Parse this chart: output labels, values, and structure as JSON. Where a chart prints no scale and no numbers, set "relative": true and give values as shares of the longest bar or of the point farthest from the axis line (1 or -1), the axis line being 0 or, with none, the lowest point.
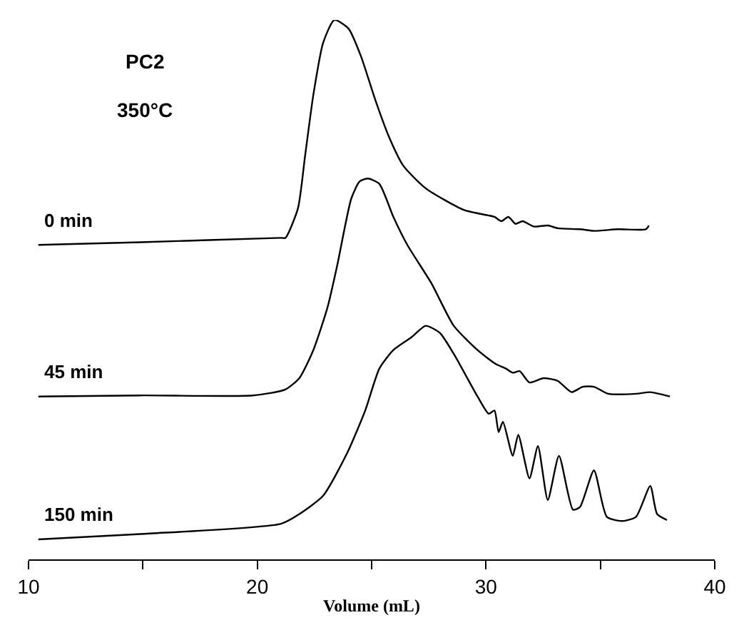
{
  "chart_data": {
    "type": "line",
    "relative": true,
    "xlabel": "Volume (mL)",
    "xlim": [
      10,
      40
    ],
    "xticks": [
      10,
      {
        "value": 15,
        "label": null
      },
      20,
      {
        "value": 25,
        "label": null
      },
      30,
      {
        "value": 35,
        "label": null
      },
      40
    ],
    "annotations": [
      "PC2",
      "350°C"
    ],
    "legend": false,
    "marker": "none",
    "line_style": "solid",
    "series": [
      {
        "name": "0 min",
        "color": "#000000",
        "x": [
          10.43,
          14.91,
          21.04,
          21.23,
          21.78,
          22.09,
          22.45,
          22.88,
          23.37,
          23.99,
          24.54,
          25.15,
          25.77,
          26.38,
          27.36,
          29.02,
          30.06,
          30.37,
          30.67,
          30.98,
          31.29,
          31.6,
          32.09,
          32.7,
          33.13,
          34.11,
          34.72,
          35.77,
          36.99,
          37.12
        ],
        "values": [
          0.583,
          0.588,
          0.596,
          0.596,
          0.651,
          0.748,
          0.861,
          0.958,
          1.0,
          0.984,
          0.932,
          0.853,
          0.782,
          0.73,
          0.688,
          0.648,
          0.638,
          0.635,
          0.627,
          0.635,
          0.622,
          0.627,
          0.617,
          0.619,
          0.614,
          0.612,
          0.609,
          0.612,
          0.612,
          0.619
        ]
      },
      {
        "name": "45 min",
        "color": "#000000",
        "x": [
          10.43,
          14.91,
          19.82,
          21.23,
          21.84,
          22.45,
          23.07,
          23.5,
          24.11,
          24.48,
          24.85,
          25.34,
          25.95,
          26.56,
          27.61,
          28.59,
          29.63,
          30.43,
          30.86,
          31.17,
          31.47,
          31.9,
          32.52,
          33.13,
          33.74,
          34.23,
          34.72,
          35.34,
          36.56,
          37.18,
          38.04
        ],
        "values": [
          0.302,
          0.304,
          0.304,
          0.315,
          0.336,
          0.388,
          0.467,
          0.546,
          0.669,
          0.701,
          0.706,
          0.696,
          0.635,
          0.583,
          0.512,
          0.433,
          0.388,
          0.362,
          0.354,
          0.346,
          0.349,
          0.328,
          0.336,
          0.331,
          0.31,
          0.32,
          0.32,
          0.307,
          0.307,
          0.31,
          0.302
        ]
      },
      {
        "name": "150 min",
        "color": "#000000",
        "x": [
          10.43,
          14.91,
          21.04,
          21.84,
          22.88,
          23.93,
          24.72,
          25.34,
          25.95,
          26.75,
          27.36,
          27.98,
          28.59,
          29.63,
          30.12,
          30.37,
          30.55,
          30.74,
          31.17,
          31.41,
          31.9,
          32.27,
          32.7,
          33.19,
          33.8,
          34.11,
          34.72,
          35.28,
          35.95,
          36.56,
          37.18,
          37.48,
          37.91
        ],
        "values": [
          0.037,
          0.047,
          0.066,
          0.084,
          0.118,
          0.197,
          0.276,
          0.354,
          0.388,
          0.412,
          0.433,
          0.42,
          0.381,
          0.302,
          0.27,
          0.276,
          0.236,
          0.255,
          0.192,
          0.231,
          0.15,
          0.21,
          0.11,
          0.192,
          0.092,
          0.097,
          0.165,
          0.079,
          0.071,
          0.079,
          0.136,
          0.084,
          0.073
        ]
      }
    ]
  }
}
